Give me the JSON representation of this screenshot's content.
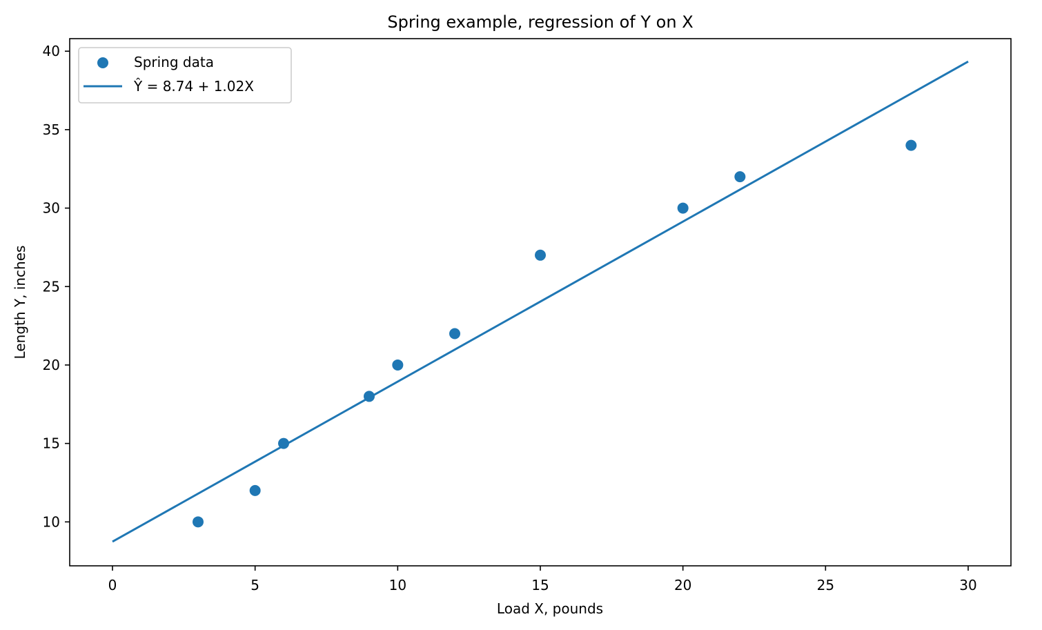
{
  "chart_data": {
    "type": "scatter",
    "title": "Spring example, regression of Y on X",
    "xlabel": "Load X, pounds",
    "ylabel": "Length Y, inches",
    "xlim": [
      -1.5,
      31.5
    ],
    "ylim": [
      7.2,
      40.8
    ],
    "xticks": [
      0,
      5,
      10,
      15,
      20,
      25,
      30
    ],
    "yticks": [
      10,
      15,
      20,
      25,
      30,
      35,
      40
    ],
    "grid": false,
    "legend_position": "upper-left",
    "series": [
      {
        "name": "Spring data",
        "type": "scatter",
        "color": "#1f77b4",
        "x": [
          3,
          5,
          6,
          9,
          10,
          12,
          15,
          20,
          22,
          28
        ],
        "y": [
          10,
          12,
          15,
          18,
          20,
          22,
          27,
          30,
          32,
          34
        ]
      },
      {
        "name": "Ŷ = 8.74 + 1.02X",
        "type": "line",
        "color": "#1f77b4",
        "x": [
          0,
          30
        ],
        "y": [
          8.74,
          39.34
        ]
      }
    ]
  }
}
